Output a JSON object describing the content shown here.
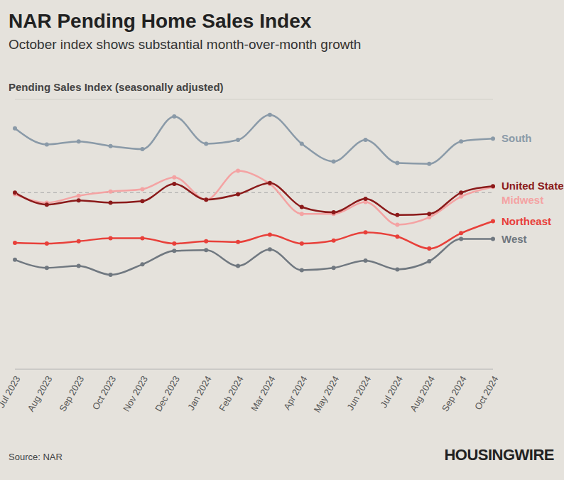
{
  "chart_data": {
    "type": "line",
    "title": "NAR Pending Home Sales Index",
    "subtitle": "October index shows substantial month-over-month growth",
    "y_label": "Pending Sales Index (seasonally adjusted)",
    "source": "Source: NAR",
    "brand": "HOUSINGWIRE",
    "categories": [
      "Jul 2023",
      "Aug 2023",
      "Sep 2023",
      "Oct 2023",
      "Nov 2023",
      "Dec 2023",
      "Jan 2024",
      "Feb 2024",
      "Mar 2024",
      "Apr 2024",
      "May 2024",
      "Jun 2024",
      "Jul 2024",
      "Aug 2024",
      "Sep 2024",
      "Oct 2024"
    ],
    "series": [
      {
        "name": "South",
        "color": "#8a9aa8",
        "values": [
          92.5,
          88.3,
          89.1,
          87.9,
          87.1,
          95.6,
          88.5,
          89.5,
          96.0,
          88.5,
          83.9,
          89.5,
          83.5,
          83.3,
          89.1,
          89.8
        ]
      },
      {
        "name": "Midwest",
        "color": "#f4a3a3",
        "values": [
          75.4,
          73.2,
          75.0,
          76.1,
          76.7,
          79.8,
          74.0,
          81.5,
          78.1,
          70.3,
          70.3,
          73.4,
          67.5,
          69.4,
          74.8,
          77.3
        ]
      },
      {
        "name": "United States",
        "color": "#8b1a1a",
        "values": [
          75.8,
          72.7,
          73.8,
          73.2,
          73.6,
          78.1,
          74.0,
          75.4,
          78.3,
          72.1,
          70.7,
          74.2,
          70.0,
          70.3,
          75.8,
          77.5
        ]
      },
      {
        "name": "Northeast",
        "color": "#e8403a",
        "values": [
          62.8,
          62.6,
          63.2,
          64.0,
          64.0,
          62.6,
          63.2,
          63.0,
          64.9,
          62.6,
          63.4,
          65.5,
          64.4,
          61.3,
          65.3,
          68.4
        ]
      },
      {
        "name": "West",
        "color": "#707880",
        "values": [
          58.4,
          56.3,
          56.8,
          54.5,
          57.2,
          60.7,
          60.9,
          56.8,
          61.1,
          55.7,
          56.3,
          58.2,
          55.9,
          58.0,
          63.8,
          63.8
        ]
      }
    ],
    "reference_line": 75.8,
    "ylim": [
      30,
      100
    ],
    "yticks": [
      40,
      60,
      80,
      100
    ],
    "grid": true,
    "tick_labels": "x",
    "marker": "circle"
  }
}
